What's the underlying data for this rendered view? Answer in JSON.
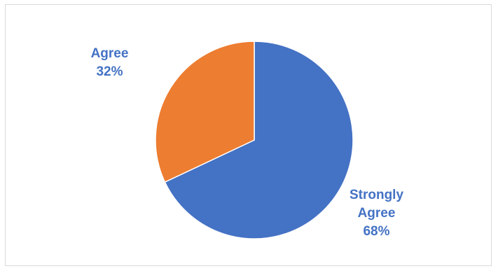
{
  "chart_data": {
    "type": "pie",
    "categories": [
      "Strongly Agree",
      "Agree"
    ],
    "values": [
      68,
      32
    ],
    "labels": [
      {
        "line1": "Strongly",
        "line2": "Agree",
        "pct": "68%"
      },
      {
        "line1": "Agree",
        "pct": "32%"
      }
    ],
    "colors": [
      "#4472c4",
      "#ed7d31"
    ],
    "label_color": "#4472c4",
    "start": "12 o'clock",
    "direction": "clockwise",
    "legend": "none"
  }
}
